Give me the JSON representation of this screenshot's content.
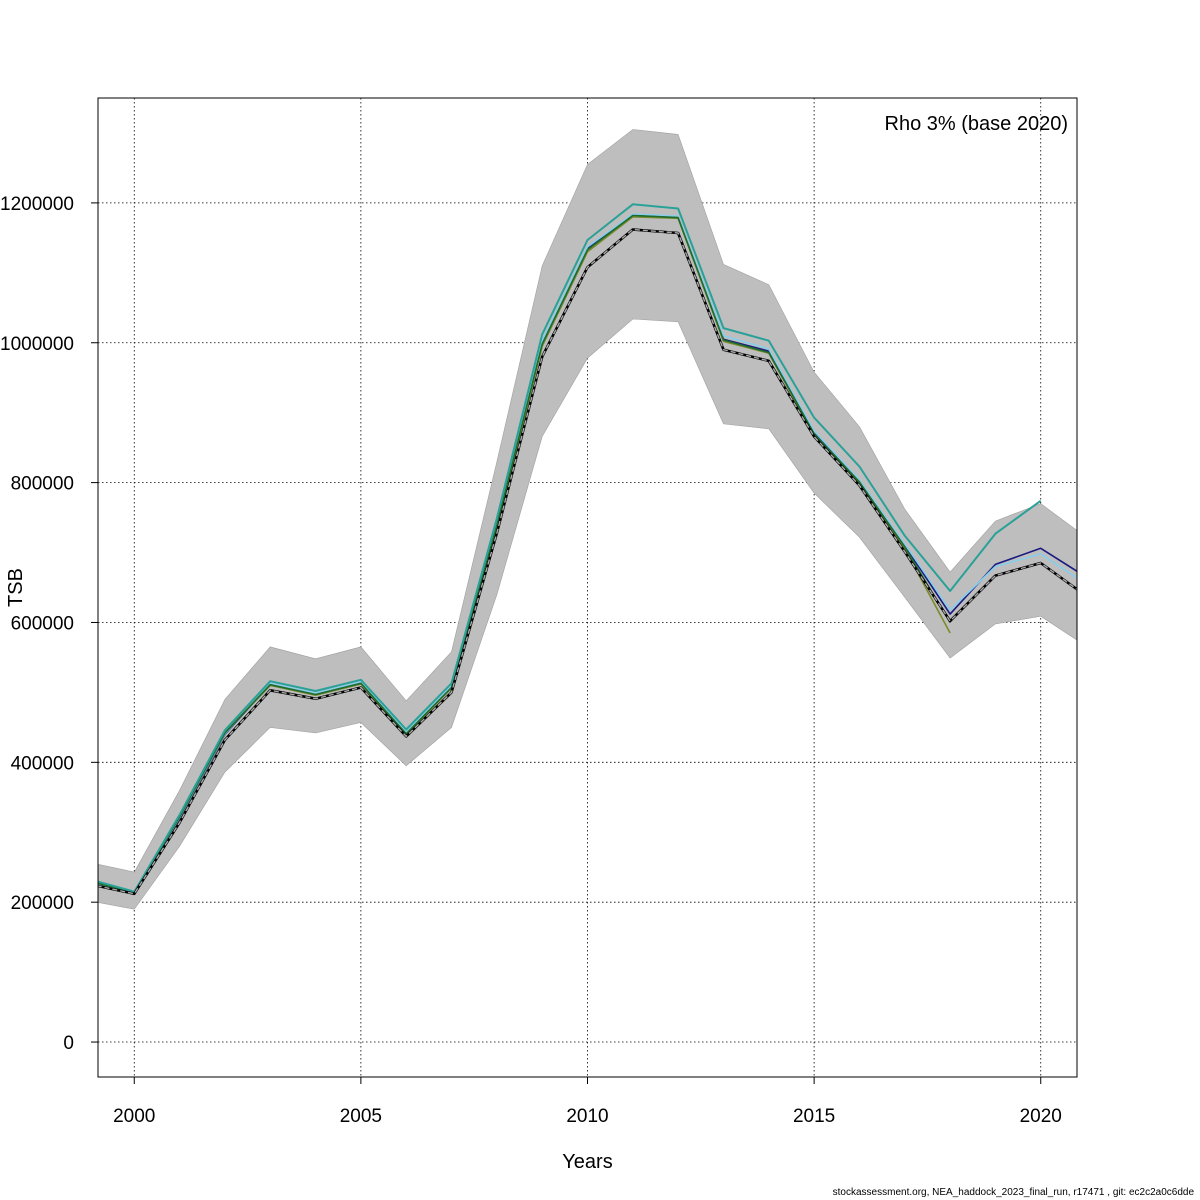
{
  "footer": "stockassessment.org, NEA_haddock_2023_final_run, r17471 , git: ec2c2a0c6dde",
  "chart_data": {
    "type": "line",
    "title": "",
    "xlabel": "Years",
    "ylabel": "TSB",
    "annotation": "Rho 3% (base 2020)",
    "legend": "none",
    "grid": true,
    "xlim": [
      1999.2,
      2020.8
    ],
    "ylim": [
      -50000,
      1350000
    ],
    "xticks": [
      2000,
      2005,
      2010,
      2015,
      2020
    ],
    "yticks": [
      0,
      200000,
      400000,
      600000,
      800000,
      1000000,
      1200000
    ],
    "x": [
      1999,
      2000,
      2001,
      2002,
      2003,
      2004,
      2005,
      2006,
      2007,
      2008,
      2009,
      2010,
      2011,
      2012,
      2013,
      2014,
      2015,
      2016,
      2017,
      2018,
      2019,
      2020,
      2021
    ],
    "band_color": "#bebebe",
    "band_lower": [
      202000,
      190000,
      280000,
      386000,
      450000,
      442000,
      457000,
      395000,
      450000,
      640000,
      866000,
      978000,
      1034000,
      1030000,
      884000,
      877000,
      785000,
      722000,
      636000,
      549000,
      598000,
      609000,
      566000
    ],
    "band_upper": [
      257000,
      243000,
      360000,
      490000,
      565000,
      548000,
      565000,
      488000,
      558000,
      830000,
      1110000,
      1255000,
      1305000,
      1298000,
      1112000,
      1083000,
      958000,
      880000,
      762000,
      672000,
      745000,
      770000,
      722000
    ],
    "series": [
      {
        "color": "#1a1a80",
        "dashed": false,
        "width": 1.6,
        "values": [
          228000,
          212000,
          320000,
          440000,
          512000,
          498000,
          514000,
          442000,
          508000,
          740000,
          1000000,
          1135000,
          1183000,
          1180000,
          1005000,
          988000,
          872000,
          802000,
          710000,
          612000,
          683000,
          706000,
          665000
        ]
      },
      {
        "color": "#87ceeb",
        "dashed": false,
        "width": 1.6,
        "values": [
          229000,
          213000,
          321000,
          441000,
          513000,
          499000,
          515000,
          443000,
          509000,
          742000,
          1003000,
          1137000,
          1184000,
          1181000,
          1010000,
          991000,
          874000,
          804000,
          712000,
          618000,
          680000,
          698000,
          655000
        ]
      },
      {
        "color": "#7a8b2b",
        "dashed": false,
        "width": 1.6,
        "values": [
          232000,
          214000,
          323000,
          443000,
          510000,
          496000,
          512000,
          440000,
          506000,
          737000,
          995000,
          1130000,
          1180000,
          1178000,
          1002000,
          985000,
          868000,
          800000,
          705000,
          585000,
          null,
          null,
          null
        ]
      },
      {
        "color": "#1e6b2e",
        "dashed": false,
        "width": 1.6,
        "values": [
          230000,
          214000,
          322000,
          442000,
          511000,
          497000,
          513000,
          441000,
          507000,
          739000,
          998000,
          1133000,
          1182000,
          1179000,
          1004000,
          986000,
          870000,
          801000,
          708000,
          600000,
          null,
          null,
          null
        ]
      },
      {
        "color": "#2aa198",
        "dashed": false,
        "width": 2.0,
        "values": [
          233000,
          215000,
          325000,
          446000,
          516000,
          502000,
          518000,
          447000,
          513000,
          749000,
          1012000,
          1147000,
          1198000,
          1192000,
          1021000,
          1003000,
          893000,
          823000,
          724000,
          645000,
          727000,
          774000,
          null
        ]
      },
      {
        "color": "#000000",
        "dashed": false,
        "width": 2.6,
        "values": [
          226000,
          212000,
          314000,
          432000,
          503000,
          491000,
          507000,
          437000,
          500000,
          728000,
          980000,
          1108000,
          1162000,
          1157000,
          990000,
          974000,
          866000,
          796000,
          701000,
          602000,
          667000,
          685000,
          638000
        ]
      },
      {
        "color": "#a9a9a9",
        "dashed": true,
        "width": 1.4,
        "values": [
          226000,
          212000,
          314000,
          432000,
          503000,
          491000,
          507000,
          437000,
          500000,
          728000,
          980000,
          1108000,
          1162000,
          1157000,
          990000,
          974000,
          866000,
          796000,
          701000,
          602000,
          667000,
          685000,
          638000
        ]
      }
    ]
  }
}
